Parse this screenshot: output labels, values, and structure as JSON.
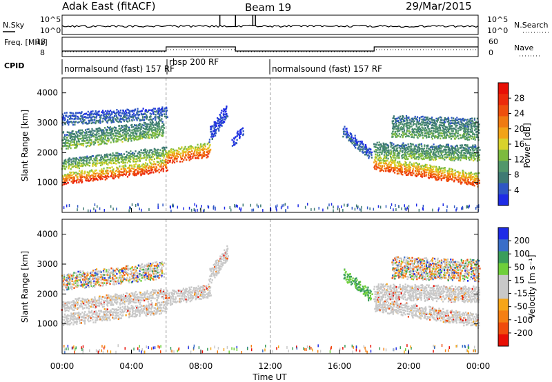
{
  "header": {
    "station": "Adak East (fitACF)",
    "beam": "Beam 19",
    "date": "29/Mar/2015"
  },
  "colors": {
    "power_scale": [
      "#1e2be6",
      "#2f57c4",
      "#3e7a73",
      "#52976a",
      "#7dba3e",
      "#d8d22c",
      "#f2a316",
      "#f07a10",
      "#ee4f0c",
      "#ec2a0a",
      "#e80f05"
    ],
    "velocity_scale": [
      "#e80f05",
      "#f04c0c",
      "#f57f12",
      "#f6a518",
      "#c8c8c8",
      "#c8c8c8",
      "#6fcf3a",
      "#3a9d5a",
      "#3a6ec8",
      "#1e2be6"
    ],
    "ground_scatter": "#c8c8c8"
  },
  "chart_data": [
    {
      "type": "line",
      "panel": "sky-noise",
      "ylabel": "N.Sky",
      "right_label": "N.Search",
      "yticks_left": [
        "10^5",
        "10^0"
      ],
      "yticks_right": [
        "10^5",
        "10^0"
      ],
      "x": [
        "00:00",
        "04:00",
        "08:00",
        "12:00",
        "16:00",
        "20:00",
        "00:00"
      ]
    },
    {
      "type": "line",
      "panel": "frequency-nave",
      "ylabel": "Freq. [MHz]",
      "right_label": "Nave",
      "yticks_left": [
        "18",
        "8"
      ],
      "yticks_right": [
        "60",
        "0"
      ],
      "freq_segments": [
        {
          "from_hr": 0.0,
          "to_hr": 6.0,
          "value": 10.5
        },
        {
          "from_hr": 6.0,
          "to_hr": 10.0,
          "value": 13.0
        },
        {
          "from_hr": 10.0,
          "to_hr": 18.0,
          "value": 10.5
        },
        {
          "from_hr": 18.0,
          "to_hr": 24.0,
          "value": 13.0
        }
      ]
    },
    {
      "type": "table",
      "panel": "cpid",
      "label": "CPID",
      "segments": [
        {
          "start_hr": 0,
          "name": "normalsound (fast) 157 RF"
        },
        {
          "start_hr": 6,
          "name": "rbsp 200 RF"
        },
        {
          "start_hr": 12,
          "name": "normalsound (fast) 157 RF"
        }
      ]
    },
    {
      "type": "heatmap",
      "panel": "power",
      "ylabel": "Slant Range [km]",
      "yticks": [
        "1000",
        "2000",
        "3000",
        "4000"
      ],
      "ylim": [
        0,
        4500
      ],
      "colorbar_label": "Power [dB]",
      "colorbar_ticks": [
        "28",
        "24",
        "20",
        "16",
        "12",
        "8",
        "4"
      ],
      "bands": [
        {
          "t0": 0.0,
          "t1": 6.0,
          "r0_start": 1000,
          "r0_end": 1450,
          "width": 380,
          "level": 0.85
        },
        {
          "t0": 0.0,
          "t1": 6.0,
          "r0_start": 1500,
          "r0_end": 1900,
          "width": 350,
          "level": 0.45
        },
        {
          "t0": 0.0,
          "t1": 5.8,
          "r0_start": 2200,
          "r0_end": 2600,
          "width": 550,
          "level": 0.4
        },
        {
          "t0": 0.0,
          "t1": 6.0,
          "r0_start": 3000,
          "r0_end": 3200,
          "width": 400,
          "level": 0.2
        },
        {
          "t0": 6.0,
          "t1": 8.5,
          "r0_start": 1700,
          "r0_end": 1950,
          "width": 450,
          "level": 0.8
        },
        {
          "t0": 8.5,
          "t1": 9.5,
          "r0_start": 2400,
          "r0_end": 3200,
          "width": 500,
          "level": 0.12
        },
        {
          "t0": 9.8,
          "t1": 10.4,
          "r0_start": 2200,
          "r0_end": 2700,
          "width": 300,
          "level": 0.08
        },
        {
          "t0": 16.2,
          "t1": 17.8,
          "r0_start": 2600,
          "r0_end": 1800,
          "width": 350,
          "level": 0.18
        },
        {
          "t0": 18.0,
          "t1": 24.0,
          "r0_start": 1500,
          "r0_end": 950,
          "width": 420,
          "level": 0.8
        },
        {
          "t0": 18.0,
          "t1": 24.0,
          "r0_start": 1900,
          "r0_end": 1800,
          "width": 500,
          "level": 0.4
        },
        {
          "t0": 19.0,
          "t1": 24.0,
          "r0_start": 2600,
          "r0_end": 2500,
          "width": 700,
          "level": 0.35
        }
      ]
    },
    {
      "type": "heatmap",
      "panel": "velocity",
      "ylabel": "Slant Range [km]",
      "yticks": [
        "1000",
        "2000",
        "3000",
        "4000"
      ],
      "ylim": [
        0,
        4500
      ],
      "xlabel": "Time UT",
      "xticks": [
        "00:00",
        "04:00",
        "08:00",
        "12:00",
        "16:00",
        "20:00",
        "00:00"
      ],
      "colorbar_label": "Velocity [m s⁻¹]",
      "colorbar_ticks": [
        "200",
        "100",
        "50",
        "15",
        "-15",
        "-50",
        "-100",
        "-200"
      ],
      "bands": [
        {
          "t0": 0.0,
          "t1": 6.0,
          "r0_start": 1000,
          "r0_end": 1450,
          "width": 380,
          "kind": "gs"
        },
        {
          "t0": 0.0,
          "t1": 6.0,
          "r0_start": 1500,
          "r0_end": 1900,
          "width": 350,
          "kind": "gs"
        },
        {
          "t0": 0.0,
          "t1": 5.8,
          "r0_start": 2200,
          "r0_end": 2600,
          "width": 550,
          "kind": "mix"
        },
        {
          "t0": 6.0,
          "t1": 8.5,
          "r0_start": 1700,
          "r0_end": 1950,
          "width": 450,
          "kind": "gs"
        },
        {
          "t0": 8.5,
          "t1": 9.5,
          "r0_start": 2400,
          "r0_end": 3200,
          "width": 500,
          "kind": "gs"
        },
        {
          "t0": 16.2,
          "t1": 17.8,
          "r0_start": 2600,
          "r0_end": 1800,
          "width": 350,
          "kind": "pos"
        },
        {
          "t0": 18.0,
          "t1": 24.0,
          "r0_start": 1500,
          "r0_end": 950,
          "width": 420,
          "kind": "gs"
        },
        {
          "t0": 18.0,
          "t1": 24.0,
          "r0_start": 1900,
          "r0_end": 1800,
          "width": 500,
          "kind": "gs"
        },
        {
          "t0": 19.0,
          "t1": 24.0,
          "r0_start": 2600,
          "r0_end": 2500,
          "width": 700,
          "kind": "mix"
        }
      ]
    }
  ]
}
